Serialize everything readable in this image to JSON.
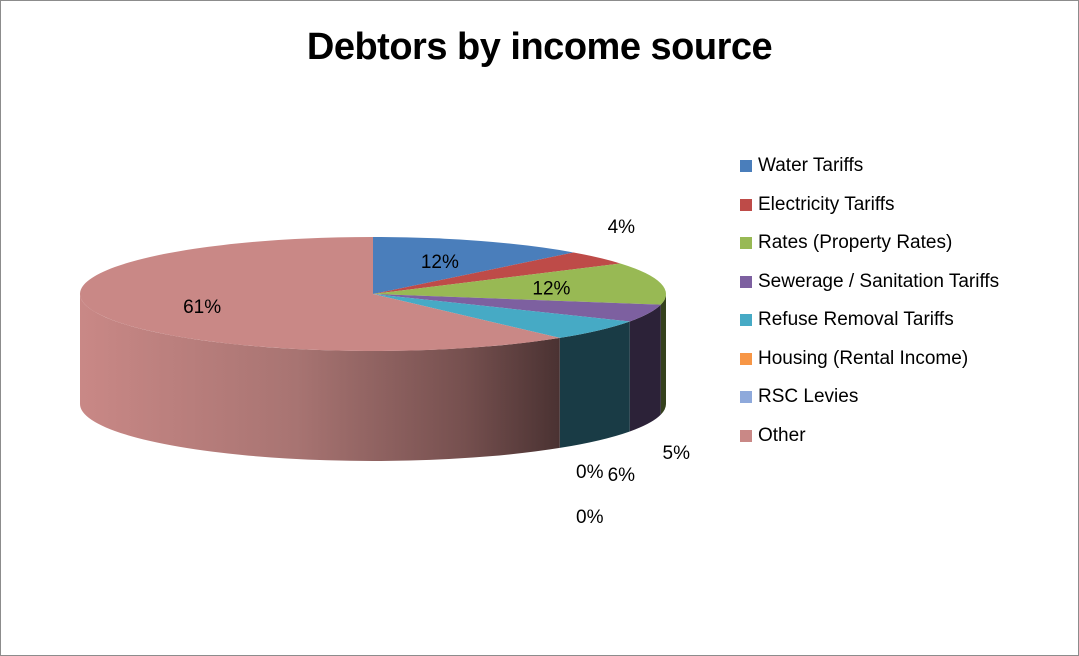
{
  "chart_data": {
    "type": "pie",
    "title": "Debtors by income source",
    "categories": [
      "Water Tariffs",
      "Electricity Tariffs",
      "Rates (Property Rates)",
      "Sewerage / Sanitation  Tariffs",
      "Refuse Removal Tariffs",
      "Housing (Rental  Income)",
      "RSC Levies",
      "Other"
    ],
    "values": [
      12,
      4,
      12,
      5,
      6,
      0,
      0,
      61
    ],
    "data_labels": [
      "12%",
      "4%",
      "12%",
      "5%",
      "6%",
      "0%",
      "0%",
      "61%"
    ],
    "colors": [
      "#4a7ebb",
      "#be4b48",
      "#98b954",
      "#7d60a0",
      "#46aac5",
      "#f79646",
      "#8ea9db",
      "#c98886"
    ],
    "style": "3d",
    "legend_position": "right"
  }
}
